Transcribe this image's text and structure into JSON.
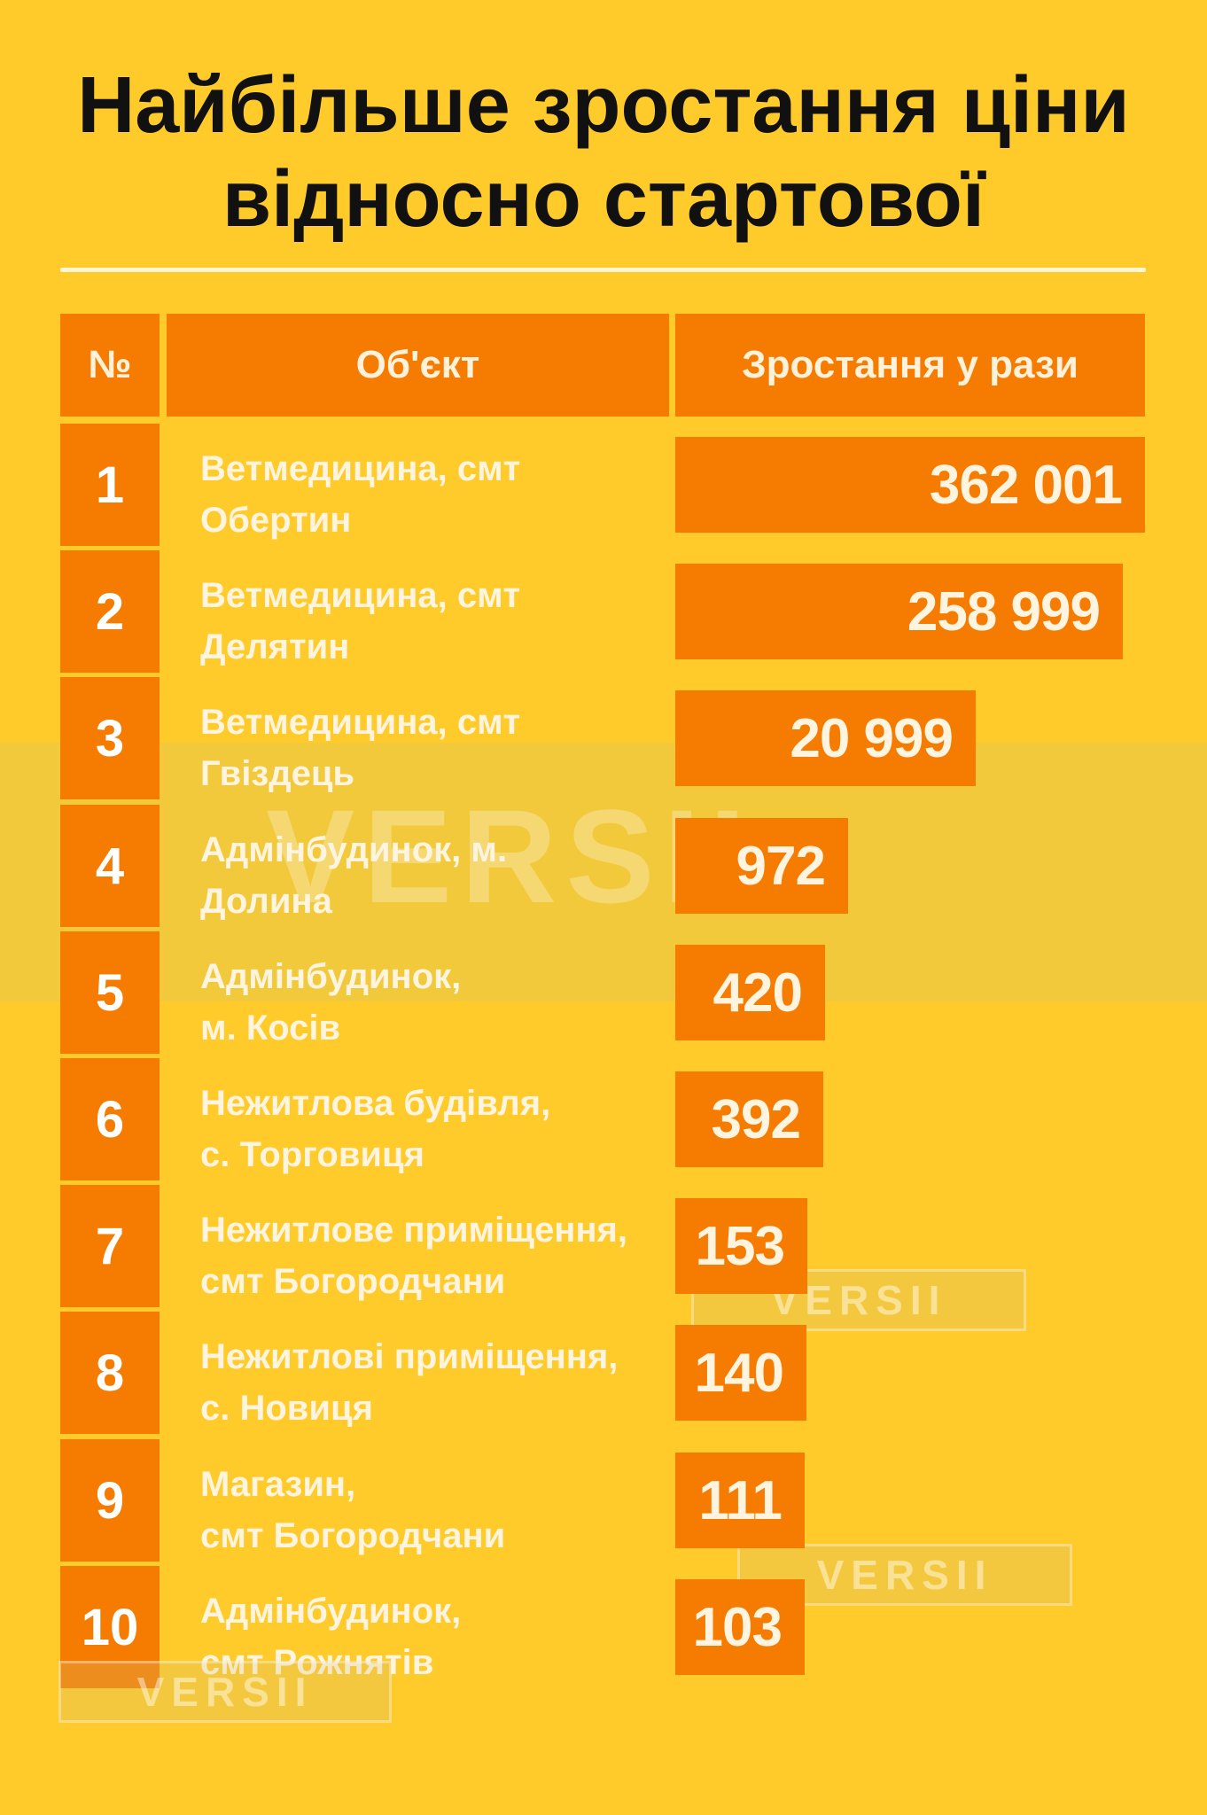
{
  "chart_data": {
    "type": "table",
    "title_lines": [
      "Найбільше зростання ціни",
      "відносно стартової"
    ],
    "columns": [
      "№",
      "Об'єкт",
      "Зростання у рази"
    ],
    "rows": [
      {
        "num": "1",
        "object": [
          "Ветмедицина, смт",
          "Обертин"
        ],
        "value": 362001,
        "label": "362 001"
      },
      {
        "num": "2",
        "object": [
          "Ветмедицина, смт",
          "Делятин"
        ],
        "value": 258999,
        "label": "258 999"
      },
      {
        "num": "3",
        "object": [
          "Ветмедицина, смт",
          "Гвіздець"
        ],
        "value": 20999,
        "label": "20 999"
      },
      {
        "num": "4",
        "object": [
          "Адмінбудинок, м.",
          "Долина"
        ],
        "value": 972,
        "label": "972"
      },
      {
        "num": "5",
        "object": [
          "Адмінбудинок,",
          "м. Косів"
        ],
        "value": 420,
        "label": "420"
      },
      {
        "num": "6",
        "object": [
          "Нежитлова будівля,",
          "с. Торговиця"
        ],
        "value": 392,
        "label": "392"
      },
      {
        "num": "7",
        "object": [
          "Нежитлове приміщення,",
          "смт Богородчани"
        ],
        "value": 153,
        "label": "153"
      },
      {
        "num": "8",
        "object": [
          "Нежитлові приміщення,",
          "с. Новиця"
        ],
        "value": 140,
        "label": "140"
      },
      {
        "num": "9",
        "object": [
          "Магазин,",
          "смт Богородчани"
        ],
        "value": 111,
        "label": "111"
      },
      {
        "num": "10",
        "object": [
          "Адмінбудинок,",
          "смт Рожнятів"
        ],
        "value": 103,
        "label": "103"
      }
    ]
  },
  "watermark": "VERSII",
  "colors": {
    "background": "#FFCB2B",
    "accent": "#F57C00",
    "text_light": "#FFF4E0",
    "title": "#111111"
  }
}
